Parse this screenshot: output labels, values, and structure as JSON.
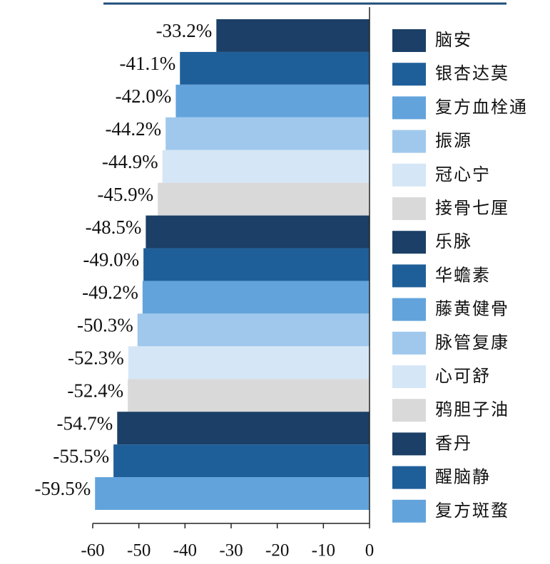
{
  "chart_data": {
    "type": "bar",
    "orientation": "horizontal",
    "categories": [
      "脑安",
      "银杏达莫",
      "复方血栓通",
      "振源",
      "冠心宁",
      "接骨七厘",
      "乐脉",
      "华蟾素",
      "藤黄健骨",
      "脉管复康",
      "心可舒",
      "鸦胆子油",
      "香丹",
      "醒脑静",
      "复方斑蝥"
    ],
    "values": [
      -33.2,
      -41.1,
      -42.0,
      -44.2,
      -44.9,
      -45.9,
      -48.5,
      -49.0,
      -49.2,
      -50.3,
      -52.3,
      -52.4,
      -54.7,
      -55.5,
      -59.5
    ],
    "value_labels": [
      "-33.2%",
      "-41.1%",
      "-42.0%",
      "-44.2%",
      "-44.9%",
      "-45.9%",
      "-48.5%",
      "-49.0%",
      "-49.2%",
      "-50.3%",
      "-52.3%",
      "-52.4%",
      "-54.7%",
      "-55.5%",
      "-59.5%"
    ],
    "colors": [
      "#1b3f66",
      "#1f5f99",
      "#62a3dc",
      "#9fc8ec",
      "#d5e6f6",
      "#d9d9d9",
      "#1b3f66",
      "#1f5f99",
      "#62a3dc",
      "#9fc8ec",
      "#d5e6f6",
      "#d9d9d9",
      "#1b3f66",
      "#1f5f99",
      "#62a3dc"
    ],
    "xlim": [
      -60,
      0
    ],
    "xticks": [
      -60,
      -50,
      -40,
      -30,
      -20,
      -10,
      0
    ],
    "legend": "right"
  }
}
